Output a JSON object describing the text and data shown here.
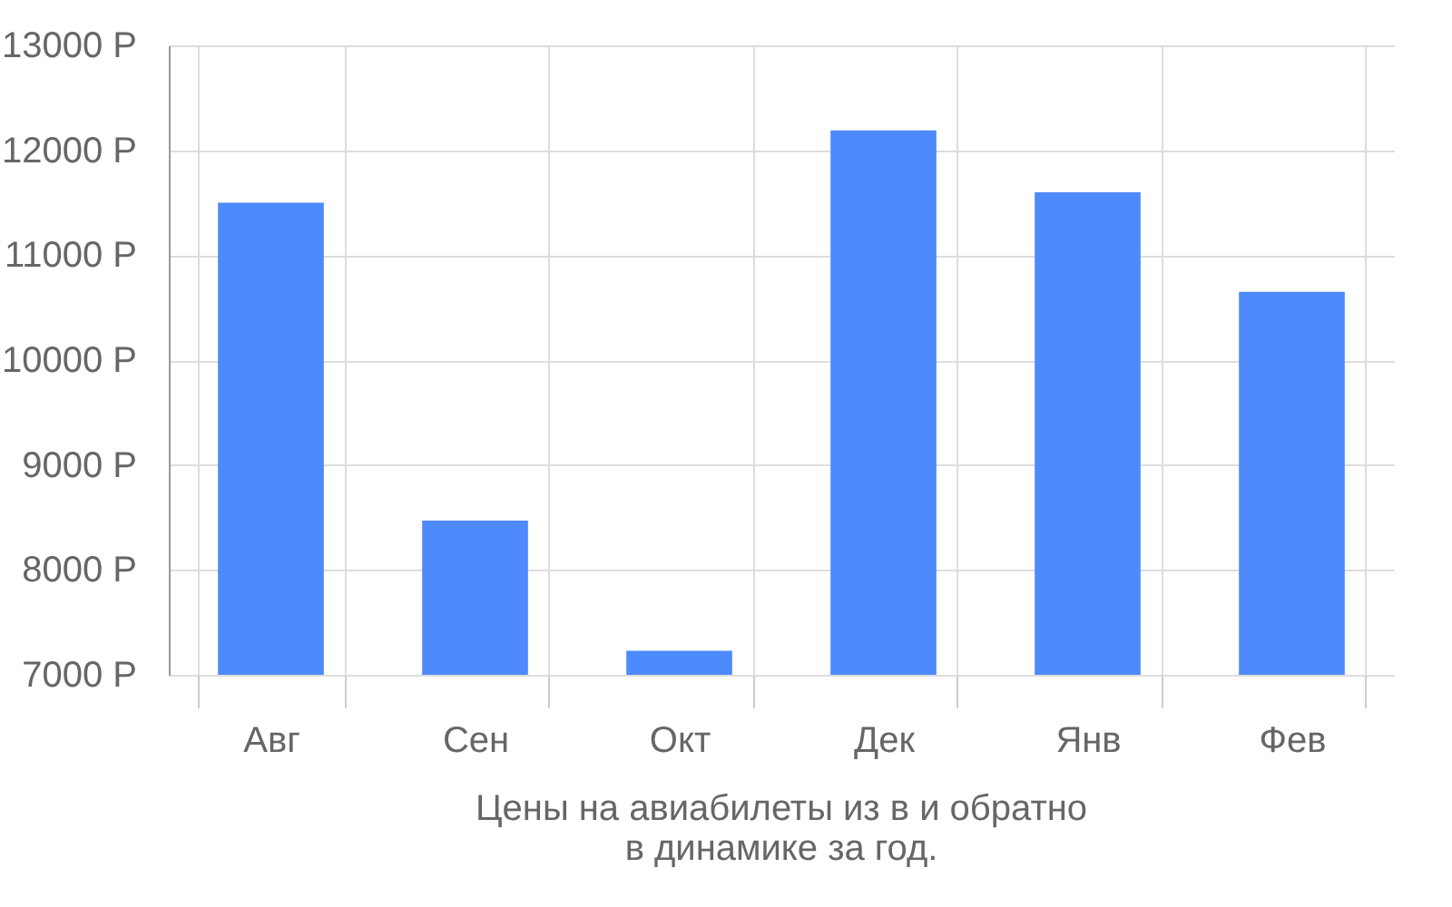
{
  "chart_data": {
    "type": "bar",
    "title": "Цены на авиабилеты из  в  и обратно",
    "subtitle": "в динамике за год.",
    "categories": [
      "Авг",
      "Сен",
      "Окт",
      "Дек",
      "Янв",
      "Фев"
    ],
    "values": [
      11500,
      8470,
      7230,
      12190,
      11600,
      10650
    ],
    "color": "#4d8afb",
    "ylim": [
      7000,
      13000
    ],
    "yticks": [
      {
        "value": 7000,
        "label": "7000 Р"
      },
      {
        "value": 8000,
        "label": "8000 Р"
      },
      {
        "value": 9000,
        "label": "9000 Р"
      },
      {
        "value": 10000,
        "label": "10000 Р"
      },
      {
        "value": 11000,
        "label": "11000 Р"
      },
      {
        "value": 12000,
        "label": "12000 Р"
      },
      {
        "value": 13000,
        "label": "13000 Р"
      }
    ],
    "grid": true
  }
}
